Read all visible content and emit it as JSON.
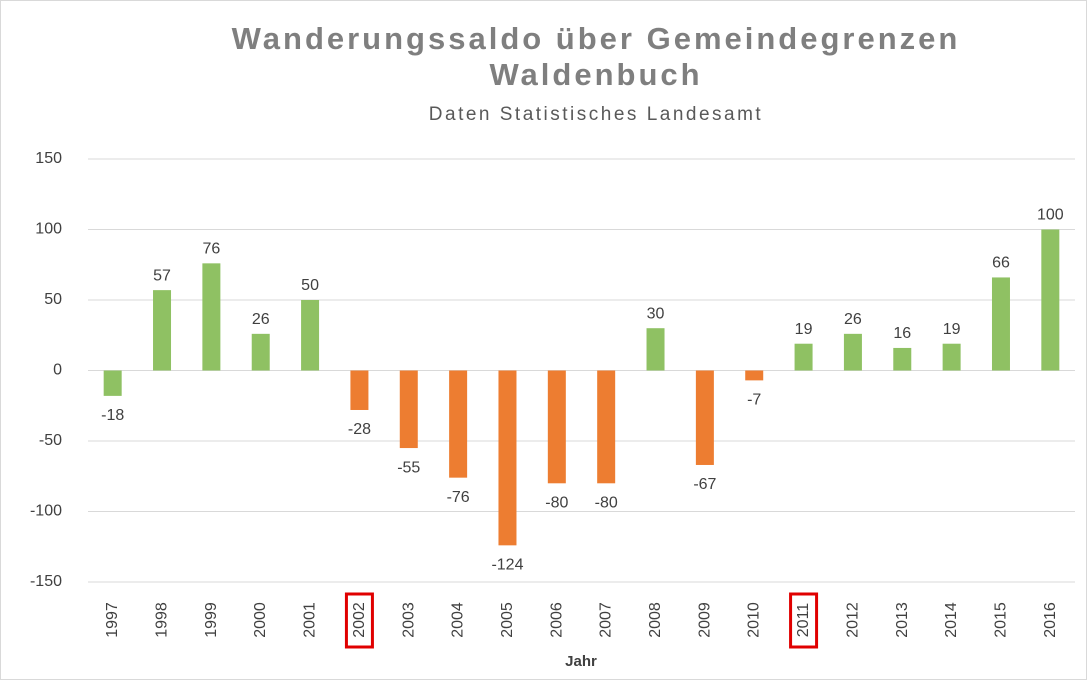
{
  "chart_data": {
    "type": "bar",
    "title": [
      "Wanderungssaldo über Gemeindegrenzen",
      "Waldenbuch"
    ],
    "subtitle": "Daten Statistisches Landesamt",
    "x_label": "Jahr",
    "categories": [
      "1997",
      "1998",
      "1999",
      "2000",
      "2001",
      "2002",
      "2003",
      "2004",
      "2005",
      "2006",
      "2007",
      "2008",
      "2009",
      "2010",
      "2011",
      "2012",
      "2013",
      "2014",
      "2015",
      "2016"
    ],
    "values": [
      -18,
      57,
      76,
      26,
      50,
      -28,
      -55,
      -76,
      -124,
      -80,
      -80,
      30,
      -67,
      -7,
      19,
      26,
      16,
      19,
      66,
      100
    ],
    "colors": [
      "#8fc163",
      "#8fc163",
      "#8fc163",
      "#8fc163",
      "#8fc163",
      "#ed7d31",
      "#ed7d31",
      "#ed7d31",
      "#ed7d31",
      "#ed7d31",
      "#ed7d31",
      "#8fc163",
      "#ed7d31",
      "#ed7d31",
      "#8fc163",
      "#8fc163",
      "#8fc163",
      "#8fc163",
      "#8fc163",
      "#8fc163"
    ],
    "highlight": [
      false,
      false,
      false,
      false,
      false,
      true,
      false,
      false,
      false,
      false,
      false,
      false,
      false,
      false,
      true,
      false,
      false,
      false,
      false,
      false
    ],
    "highlight_color": "#e00000",
    "ylim": [
      -150,
      150
    ],
    "yticks": [
      -150,
      -100,
      -50,
      0,
      50,
      100,
      150
    ],
    "grid": true
  }
}
